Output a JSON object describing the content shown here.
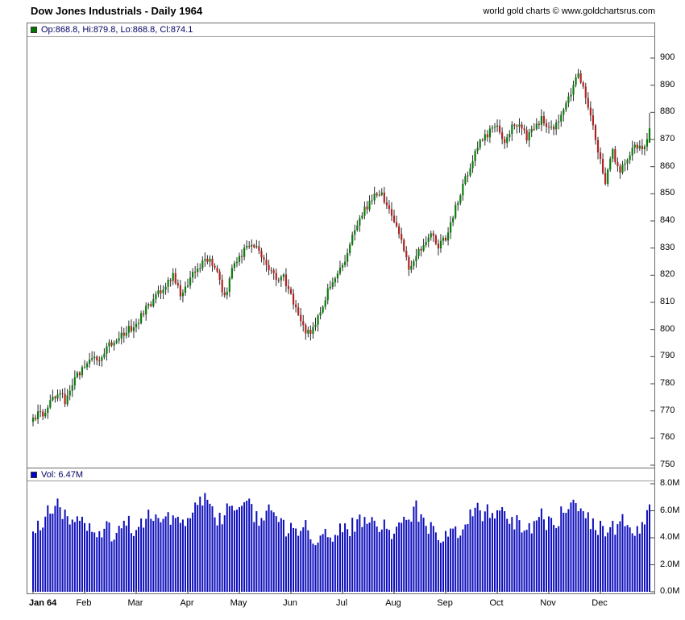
{
  "header": {
    "title": "Dow Jones Industrials - Daily 1964",
    "copyright": "world gold charts © www.goldchartsrus.com"
  },
  "legend": {
    "price_text": "Op:868.8, Hi:879.8, Lo:868.8, Cl:874.1",
    "volume_text": "Vol: 6.47M"
  },
  "chart_data": {
    "type": "candlestick+volume-bar",
    "title": "Dow Jones Industrials - Daily 1964",
    "x_axis": {
      "months": [
        "Jan 64",
        "Feb",
        "Mar",
        "Apr",
        "May",
        "Jun",
        "Jul",
        "Aug",
        "Sep",
        "Oct",
        "Nov",
        "Dec"
      ],
      "days_per_month": 21,
      "total_days": 252
    },
    "price_axis": {
      "min": 750,
      "max": 900,
      "ticks": [
        900,
        890,
        880,
        870,
        860,
        850,
        840,
        830,
        820,
        810,
        800,
        790,
        780,
        770,
        760,
        750
      ],
      "position": "right",
      "grid": false
    },
    "volume_axis": {
      "min": 0,
      "max": 8,
      "ticks": [
        8,
        6,
        4,
        2,
        0
      ],
      "tick_labels": [
        "8.0M",
        "6.0M",
        "4.0M",
        "2.0M",
        "0.0M"
      ],
      "position": "right",
      "grid": false
    },
    "price_anchors": [
      [
        0,
        766
      ],
      [
        3,
        770
      ],
      [
        5,
        768
      ],
      [
        8,
        775
      ],
      [
        11,
        777
      ],
      [
        13,
        773
      ],
      [
        16,
        780
      ],
      [
        19,
        784
      ],
      [
        21,
        786
      ],
      [
        24,
        790
      ],
      [
        27,
        788
      ],
      [
        30,
        793
      ],
      [
        33,
        796
      ],
      [
        36,
        798
      ],
      [
        39,
        800
      ],
      [
        42,
        802
      ],
      [
        45,
        806
      ],
      [
        48,
        810
      ],
      [
        51,
        813
      ],
      [
        54,
        816
      ],
      [
        57,
        820
      ],
      [
        60,
        813
      ],
      [
        63,
        817
      ],
      [
        66,
        822
      ],
      [
        69,
        825
      ],
      [
        72,
        827
      ],
      [
        75,
        820
      ],
      [
        78,
        812
      ],
      [
        81,
        822
      ],
      [
        84,
        826
      ],
      [
        87,
        830
      ],
      [
        90,
        831
      ],
      [
        93,
        828
      ],
      [
        96,
        823
      ],
      [
        99,
        818
      ],
      [
        102,
        820
      ],
      [
        105,
        812
      ],
      [
        108,
        805
      ],
      [
        111,
        800
      ],
      [
        113,
        798
      ],
      [
        116,
        805
      ],
      [
        119,
        812
      ],
      [
        122,
        818
      ],
      [
        125,
        822
      ],
      [
        127,
        826
      ],
      [
        129,
        832
      ],
      [
        132,
        838
      ],
      [
        135,
        844
      ],
      [
        138,
        848
      ],
      [
        141,
        851
      ],
      [
        144,
        846
      ],
      [
        147,
        840
      ],
      [
        150,
        832
      ],
      [
        153,
        822
      ],
      [
        156,
        827
      ],
      [
        159,
        832
      ],
      [
        162,
        836
      ],
      [
        165,
        830
      ],
      [
        168,
        834
      ],
      [
        171,
        842
      ],
      [
        174,
        850
      ],
      [
        177,
        858
      ],
      [
        180,
        866
      ],
      [
        183,
        870
      ],
      [
        186,
        873
      ],
      [
        189,
        874
      ],
      [
        192,
        870
      ],
      [
        195,
        874
      ],
      [
        198,
        877
      ],
      [
        201,
        870
      ],
      [
        204,
        874
      ],
      [
        207,
        878
      ],
      [
        210,
        873
      ],
      [
        213,
        876
      ],
      [
        216,
        880
      ],
      [
        219,
        887
      ],
      [
        222,
        894
      ],
      [
        225,
        886
      ],
      [
        228,
        875
      ],
      [
        231,
        862
      ],
      [
        233,
        855
      ],
      [
        236,
        865
      ],
      [
        239,
        858
      ],
      [
        242,
        863
      ],
      [
        245,
        868
      ],
      [
        248,
        866
      ],
      [
        251,
        874.1
      ]
    ],
    "volume_anchors": [
      [
        0,
        4.8
      ],
      [
        3,
        5.2
      ],
      [
        6,
        5.8
      ],
      [
        9,
        6.7
      ],
      [
        12,
        5.9
      ],
      [
        15,
        5.2
      ],
      [
        18,
        5.6
      ],
      [
        21,
        5.0
      ],
      [
        24,
        4.4
      ],
      [
        27,
        4.2
      ],
      [
        30,
        4.6
      ],
      [
        33,
        4.3
      ],
      [
        36,
        4.8
      ],
      [
        39,
        5.0
      ],
      [
        42,
        4.7
      ],
      [
        45,
        5.3
      ],
      [
        48,
        5.6
      ],
      [
        51,
        5.9
      ],
      [
        54,
        5.2
      ],
      [
        57,
        5.5
      ],
      [
        60,
        5.0
      ],
      [
        63,
        5.6
      ],
      [
        66,
        6.2
      ],
      [
        69,
        7.0
      ],
      [
        72,
        6.0
      ],
      [
        75,
        5.4
      ],
      [
        78,
        5.8
      ],
      [
        81,
        6.3
      ],
      [
        84,
        5.6
      ],
      [
        87,
        6.4
      ],
      [
        90,
        5.8
      ],
      [
        93,
        5.4
      ],
      [
        96,
        6.0
      ],
      [
        99,
        5.2
      ],
      [
        102,
        4.8
      ],
      [
        105,
        4.6
      ],
      [
        108,
        4.4
      ],
      [
        111,
        4.9
      ],
      [
        114,
        4.2
      ],
      [
        117,
        4.0
      ],
      [
        120,
        4.4
      ],
      [
        123,
        4.2
      ],
      [
        126,
        4.5
      ],
      [
        129,
        4.8
      ],
      [
        132,
        5.2
      ],
      [
        135,
        4.9
      ],
      [
        138,
        5.4
      ],
      [
        141,
        5.1
      ],
      [
        144,
        4.7
      ],
      [
        147,
        4.4
      ],
      [
        150,
        4.8
      ],
      [
        153,
        5.6
      ],
      [
        156,
        6.2
      ],
      [
        159,
        4.9
      ],
      [
        162,
        4.6
      ],
      [
        165,
        4.2
      ],
      [
        168,
        3.9
      ],
      [
        171,
        4.4
      ],
      [
        174,
        4.8
      ],
      [
        177,
        5.3
      ],
      [
        180,
        6.3
      ],
      [
        183,
        5.8
      ],
      [
        186,
        6.0
      ],
      [
        189,
        5.6
      ],
      [
        192,
        6.2
      ],
      [
        195,
        5.4
      ],
      [
        198,
        5.0
      ],
      [
        201,
        4.6
      ],
      [
        204,
        5.2
      ],
      [
        207,
        5.6
      ],
      [
        210,
        4.9
      ],
      [
        213,
        5.3
      ],
      [
        216,
        5.8
      ],
      [
        219,
        6.6
      ],
      [
        222,
        6.0
      ],
      [
        225,
        5.4
      ],
      [
        228,
        5.0
      ],
      [
        231,
        4.7
      ],
      [
        234,
        4.4
      ],
      [
        237,
        4.8
      ],
      [
        240,
        5.2
      ],
      [
        243,
        4.6
      ],
      [
        246,
        4.3
      ],
      [
        249,
        5.0
      ],
      [
        251,
        6.47
      ]
    ],
    "last_bar": {
      "open": 868.8,
      "high": 879.8,
      "low": 868.8,
      "close": 874.1,
      "volume_m": 6.47
    },
    "colors": {
      "up": "#0b7a0b",
      "down": "#b22222",
      "wick": "#2a2a2a",
      "volume": "#0d0dbb",
      "marker_green": "#007700",
      "marker_blue": "#0000cc",
      "axis_tick": "#444444"
    }
  }
}
